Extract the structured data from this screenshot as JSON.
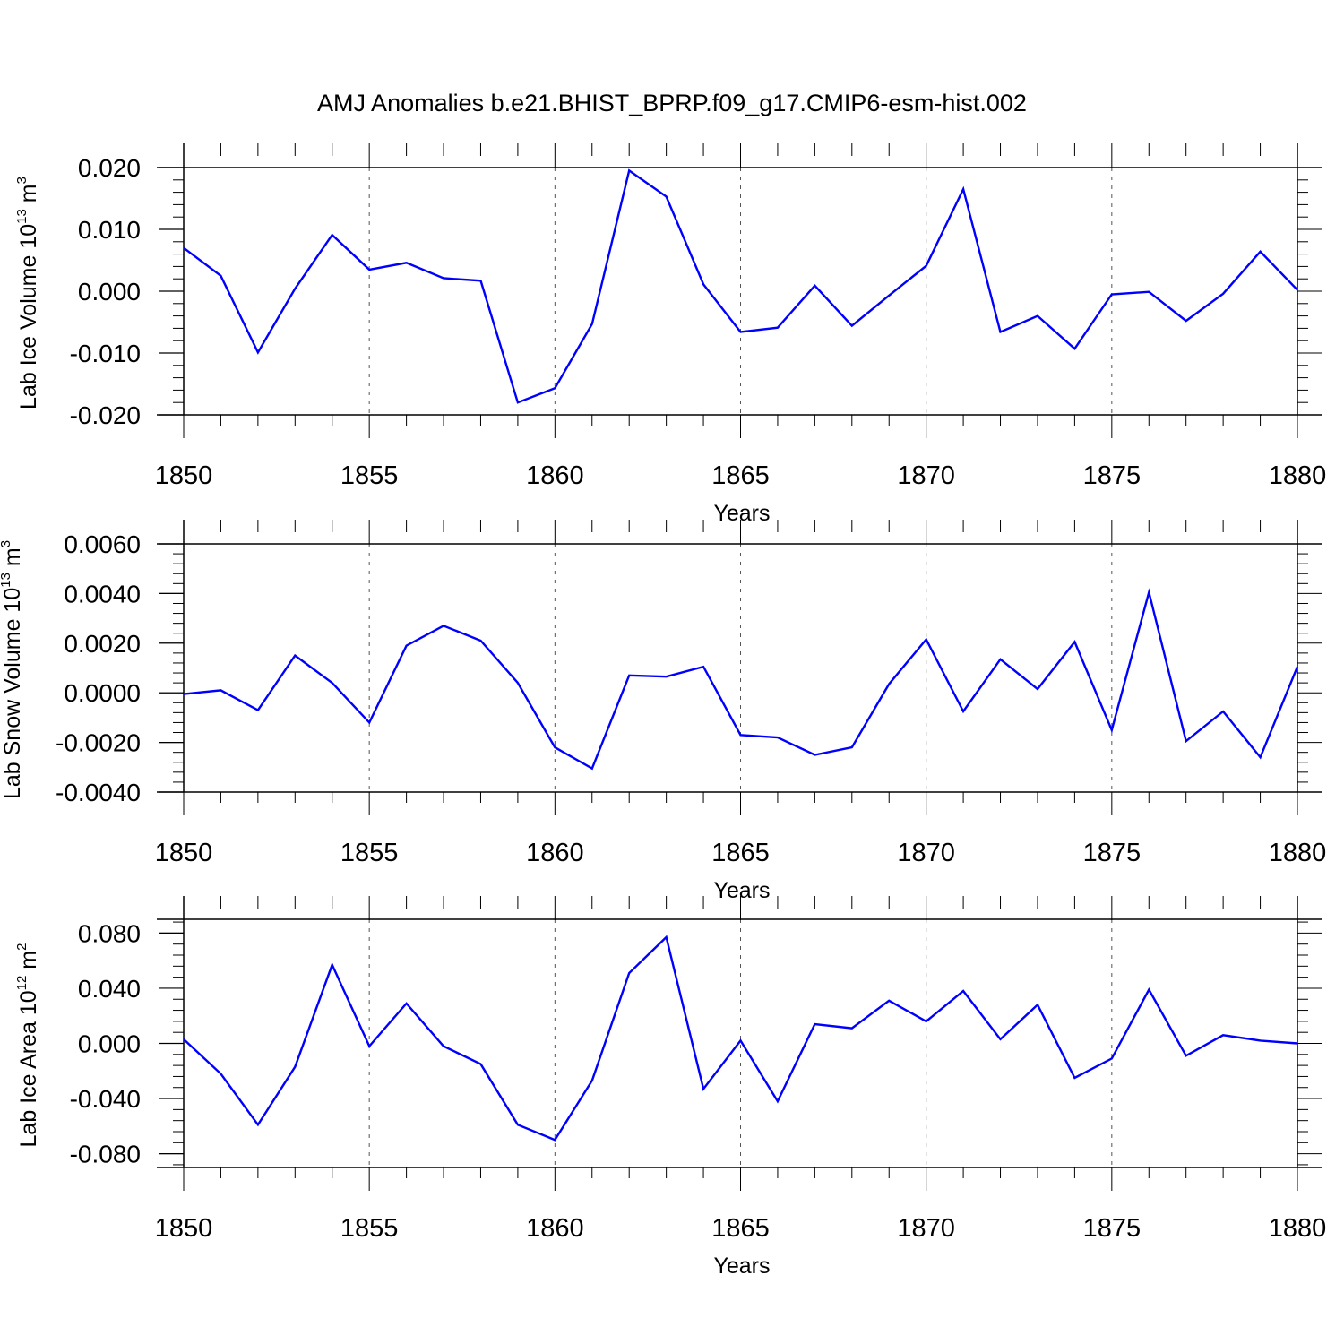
{
  "title": "AMJ Anomalies b.e21.BHIST_BPRP.f09_g17.CMIP6-esm-hist.002",
  "line_color": "#0000ff",
  "chart_data": [
    {
      "type": "line",
      "ylabel": {
        "text": "Lab Ice Volume 10",
        "exp": "13",
        "unit": " m",
        "unit_exp": "3"
      },
      "xlabel": "Years",
      "xlim": [
        1850,
        1880
      ],
      "ylim": [
        -0.02,
        0.02
      ],
      "yticks": [
        -0.02,
        -0.01,
        0.0,
        0.01,
        0.02
      ],
      "ytick_labels": [
        "-0.020",
        "-0.010",
        "0.000",
        "0.010",
        "0.020"
      ],
      "xticks": [
        1850,
        1855,
        1860,
        1865,
        1870,
        1875,
        1880
      ],
      "ytop_frame": 0.02,
      "grid": "vertical dashed at major x ticks",
      "x": [
        1850,
        1851,
        1852,
        1853,
        1854,
        1855,
        1856,
        1857,
        1858,
        1859,
        1860,
        1861,
        1862,
        1863,
        1864,
        1865,
        1866,
        1867,
        1868,
        1869,
        1870,
        1871,
        1872,
        1873,
        1874,
        1875,
        1876,
        1877,
        1878,
        1879,
        1880
      ],
      "values": [
        0.007,
        0.0025,
        -0.0099,
        0.0004,
        0.0091,
        0.0035,
        0.0046,
        0.0021,
        0.0017,
        -0.018,
        -0.0157,
        -0.0053,
        0.0195,
        0.0153,
        0.0011,
        -0.0066,
        -0.0059,
        0.0009,
        -0.0056,
        -0.0007,
        0.0041,
        0.0165,
        -0.0066,
        -0.004,
        -0.0093,
        -0.0005,
        -0.0001,
        -0.0048,
        -0.0004,
        0.0064,
        0.0002
      ]
    },
    {
      "type": "line",
      "ylabel": {
        "text": "Lab Snow Volume 10",
        "exp": "13",
        "unit": " m",
        "unit_exp": "3"
      },
      "xlabel": "Years",
      "xlim": [
        1850,
        1880
      ],
      "ylim": [
        -0.004,
        0.006
      ],
      "yticks": [
        -0.004,
        -0.002,
        0.0,
        0.002,
        0.004,
        0.006
      ],
      "ytick_labels": [
        "-0.0040",
        "-0.0020",
        "0.0000",
        "0.0020",
        "0.0040",
        "0.0060"
      ],
      "xticks": [
        1850,
        1855,
        1860,
        1865,
        1870,
        1875,
        1880
      ],
      "ytop_frame": 0.006,
      "grid": "vertical dashed at major x ticks",
      "x": [
        1850,
        1851,
        1852,
        1853,
        1854,
        1855,
        1856,
        1857,
        1858,
        1859,
        1860,
        1861,
        1862,
        1863,
        1864,
        1865,
        1866,
        1867,
        1868,
        1869,
        1870,
        1871,
        1872,
        1873,
        1874,
        1875,
        1876,
        1877,
        1878,
        1879,
        1880
      ],
      "values": [
        -5e-05,
        0.0001,
        -0.0007,
        0.0015,
        0.0004,
        -0.0012,
        0.0019,
        0.0027,
        0.0021,
        0.0004,
        -0.0022,
        -0.00305,
        0.0007,
        0.00065,
        0.00105,
        -0.0017,
        -0.0018,
        -0.0025,
        -0.0022,
        0.00035,
        0.00215,
        -0.00075,
        0.00135,
        0.00015,
        0.00205,
        -0.0015,
        0.00405,
        -0.00195,
        -0.00075,
        -0.0026,
        0.00105
      ]
    },
    {
      "type": "line",
      "ylabel": {
        "text": "Lab Ice Area 10",
        "exp": "12",
        "unit": " m",
        "unit_exp": "2"
      },
      "xlabel": "Years",
      "xlim": [
        1850,
        1880
      ],
      "ylim": [
        -0.09,
        0.09
      ],
      "yticks": [
        -0.08,
        -0.04,
        0.0,
        0.04,
        0.08
      ],
      "ytick_labels": [
        "-0.080",
        "-0.040",
        "0.000",
        "0.040",
        "0.080"
      ],
      "xticks": [
        1850,
        1855,
        1860,
        1865,
        1870,
        1875,
        1880
      ],
      "ytop_frame": 0.09,
      "grid": "vertical dashed at major x ticks",
      "x": [
        1850,
        1851,
        1852,
        1853,
        1854,
        1855,
        1856,
        1857,
        1858,
        1859,
        1860,
        1861,
        1862,
        1863,
        1864,
        1865,
        1866,
        1867,
        1868,
        1869,
        1870,
        1871,
        1872,
        1873,
        1874,
        1875,
        1876,
        1877,
        1878,
        1879,
        1880
      ],
      "values": [
        0.003,
        -0.022,
        -0.059,
        -0.017,
        0.057,
        -0.002,
        0.029,
        -0.002,
        -0.015,
        -0.059,
        -0.07,
        -0.027,
        0.051,
        0.077,
        -0.033,
        0.002,
        -0.042,
        0.014,
        0.011,
        0.031,
        0.016,
        0.038,
        0.003,
        0.028,
        -0.025,
        -0.011,
        0.039,
        -0.009,
        0.006,
        0.002,
        0.0
      ]
    }
  ]
}
